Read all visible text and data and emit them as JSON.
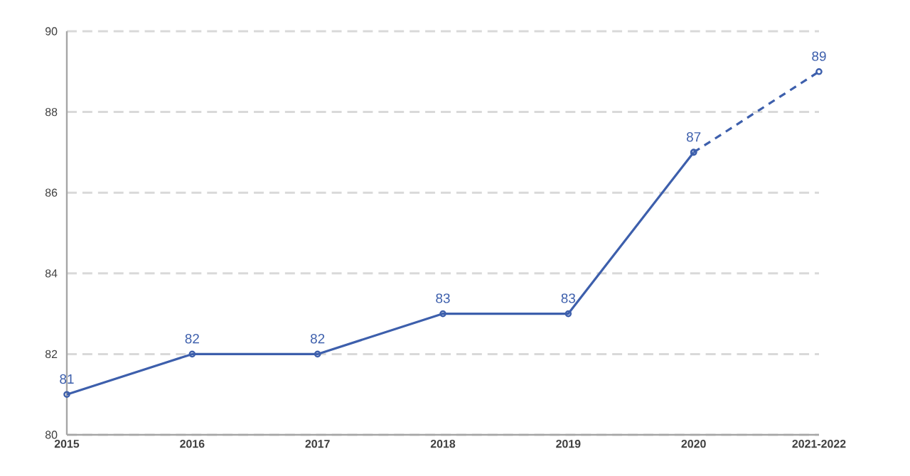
{
  "chart_data": {
    "type": "line",
    "categories": [
      "2015",
      "2016",
      "2017",
      "2018",
      "2019",
      "2020",
      "2021-2022"
    ],
    "series": [
      {
        "color": "#3d5fac",
        "line_style": "solid",
        "values": [
          81,
          82,
          82,
          83,
          83,
          87,
          null
        ],
        "value_labels": [
          "81",
          "82",
          "82",
          "83",
          "83",
          "87",
          null
        ]
      },
      {
        "color": "#3d5fac",
        "line_style": "dashed",
        "values": [
          null,
          null,
          null,
          null,
          null,
          87,
          89
        ],
        "value_labels": [
          null,
          null,
          null,
          null,
          null,
          null,
          "89"
        ]
      }
    ],
    "ylim": [
      80,
      90
    ],
    "yticks": [
      80,
      82,
      84,
      86,
      88,
      90
    ],
    "grid": "y",
    "marker": "circle"
  }
}
